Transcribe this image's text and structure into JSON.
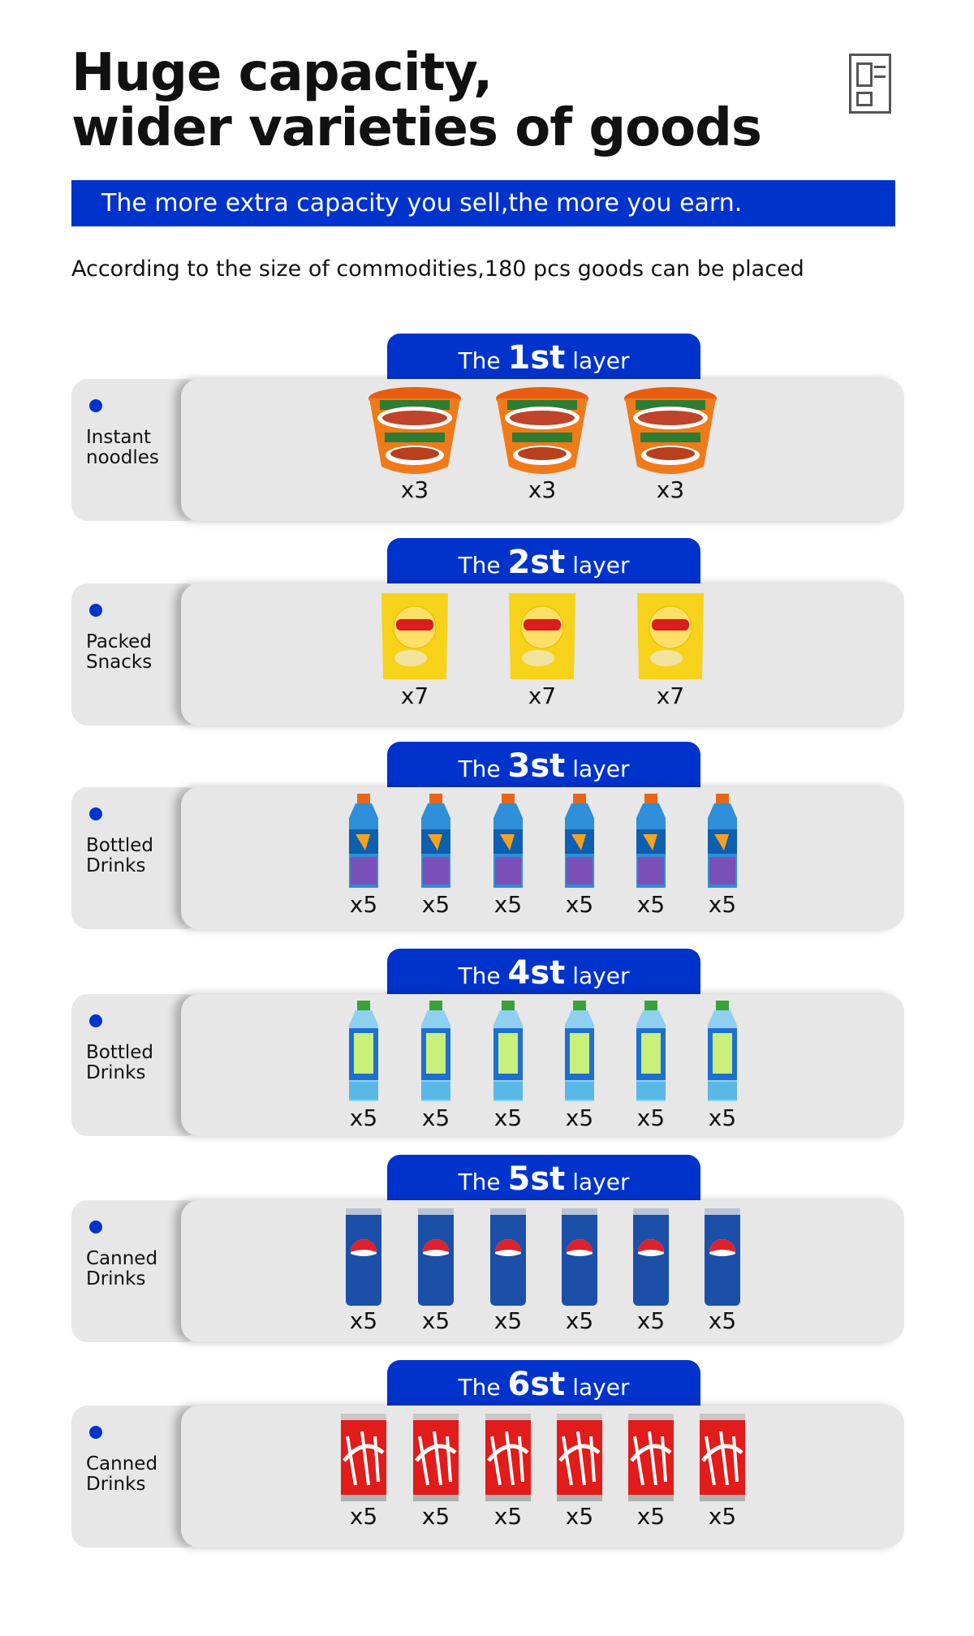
{
  "header": {
    "title_line1": "Huge capacity,",
    "title_line2": "wider varieties of goods",
    "icon": "document-layout-icon",
    "banner": "The more extra capacity you sell,the more you earn.",
    "subtitle": "According to the size of commodities,180 pcs goods can be placed"
  },
  "colors": {
    "accent": "#0033cc",
    "panel": "#e7e7e7"
  },
  "layers": [
    {
      "pre": "The",
      "num": "1st",
      "post": "layer",
      "category": "Instant\nnoodles",
      "product": "instant-noodle-cup",
      "quantities": [
        "x3",
        "x3",
        "x3"
      ]
    },
    {
      "pre": "The",
      "num": "2st",
      "post": "layer",
      "category": "Packed\nSnacks",
      "product": "chips-bag",
      "quantities": [
        "x7",
        "x7",
        "x7"
      ]
    },
    {
      "pre": "The",
      "num": "3st",
      "post": "layer",
      "category": "Bottled\nDrinks",
      "product": "sports-drink-bottle",
      "quantities": [
        "x5",
        "x5",
        "x5",
        "x5",
        "x5",
        "x5"
      ]
    },
    {
      "pre": "The",
      "num": "4st",
      "post": "layer",
      "category": "Bottled\nDrinks",
      "product": "water-drink-bottle",
      "quantities": [
        "x5",
        "x5",
        "x5",
        "x5",
        "x5",
        "x5"
      ]
    },
    {
      "pre": "The",
      "num": "5st",
      "post": "layer",
      "category": "Canned\nDrinks",
      "product": "pepsi-can",
      "quantities": [
        "x5",
        "x5",
        "x5",
        "x5",
        "x5",
        "x5"
      ]
    },
    {
      "pre": "The",
      "num": "6st",
      "post": "layer",
      "category": "Canned\nDrinks",
      "product": "coca-cola-can",
      "quantities": [
        "x5",
        "x5",
        "x5",
        "x5",
        "x5",
        "x5"
      ]
    }
  ]
}
